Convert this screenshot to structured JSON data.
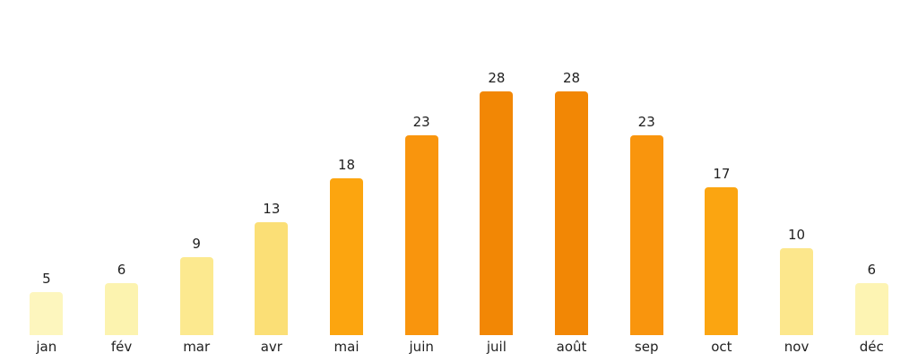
{
  "chart_data": {
    "type": "bar",
    "categories": [
      "jan",
      "fév",
      "mar",
      "avr",
      "mai",
      "juin",
      "juil",
      "août",
      "sep",
      "oct",
      "nov",
      "déc"
    ],
    "values": [
      5,
      6,
      9,
      13,
      18,
      23,
      28,
      28,
      23,
      17,
      10,
      6
    ],
    "bar_colors": [
      "#FDF6BE",
      "#FCF3AF",
      "#FCE98F",
      "#FBDF76",
      "#FCA50F",
      "#F9950D",
      "#F28705",
      "#F28705",
      "#F9950D",
      "#FBA511",
      "#FCE78C",
      "#FDF4B3"
    ],
    "title": "",
    "xlabel": "",
    "ylabel": "",
    "ylim": [
      0,
      30
    ],
    "grid": false,
    "legend_position": "none",
    "value_labels_shown": true,
    "label_color": "#1f1f1f",
    "background_color": "#ffffff"
  }
}
